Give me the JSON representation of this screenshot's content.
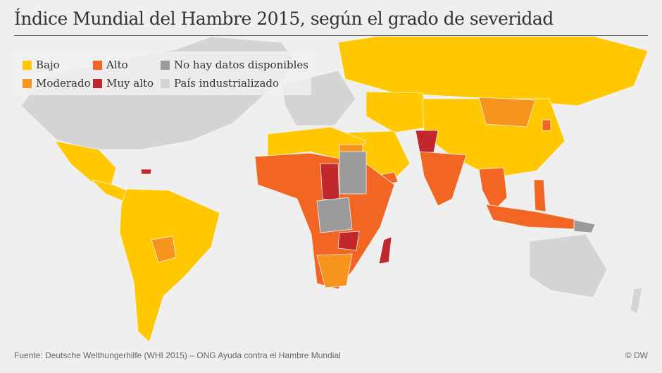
{
  "title": "Índice Mundial del Hambre 2015, según el grado de severidad",
  "legend": [
    {
      "label": "Bajo",
      "color": "#ffc800"
    },
    {
      "label": "Moderado",
      "color": "#f7941d"
    },
    {
      "label": "Alto",
      "color": "#f26522"
    },
    {
      "label": "Muy alto",
      "color": "#c1272d"
    },
    {
      "label": "No hay datos disponibles",
      "color": "#9b9b9b"
    },
    {
      "label": "País industrializado",
      "color": "#d4d4d4"
    }
  ],
  "source": "Fuente: Deutsche Welthungerhilfe (WHI 2015) – ONG Ayuda contra el Hambre Mundial",
  "credit": "© DW"
}
